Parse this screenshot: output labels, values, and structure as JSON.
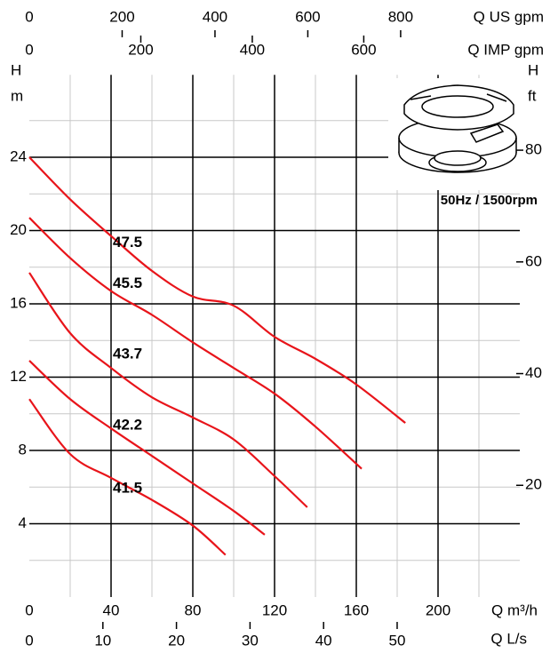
{
  "chart_data": {
    "type": "line",
    "x_title": "Q m³/h",
    "y_title": "H",
    "y_unit": "m",
    "y2_title": "H",
    "y2_unit": "ft",
    "annotation": "50Hz / 1500rpm",
    "xlim": [
      0,
      240
    ],
    "xticks": [
      0,
      40,
      80,
      120,
      160,
      200
    ],
    "xminor": [
      20,
      60,
      100,
      140,
      180,
      220
    ],
    "ylim": [
      0,
      28.5
    ],
    "yticks": [
      4,
      8,
      12,
      16,
      20,
      24
    ],
    "yminor": [
      2,
      6,
      10,
      14,
      18,
      22,
      26
    ],
    "y2lim": [
      0,
      93.5
    ],
    "y2ticks": [
      20,
      40,
      60,
      80
    ],
    "top_axes": [
      {
        "label": "Q US gpm",
        "xlim": [
          0,
          1056.7
        ],
        "xticks": [
          0,
          200,
          400,
          600,
          800
        ]
      },
      {
        "label": "Q IMP gpm",
        "xlim": [
          0,
          879.9
        ],
        "xticks": [
          0,
          200,
          400,
          600
        ]
      }
    ],
    "bottom_axes": [
      {
        "label": "Q L/s",
        "xlim": [
          0,
          66.67
        ],
        "xticks": [
          0,
          10,
          20,
          30,
          40,
          50
        ]
      }
    ],
    "grid": true,
    "series": [
      {
        "name": "47.5",
        "color": "#e8141a",
        "x": [
          0,
          20,
          40,
          60,
          80,
          100,
          120,
          140,
          160,
          184
        ],
        "values": [
          24,
          21.7,
          19.7,
          17.8,
          16.4,
          15.9,
          14.2,
          13.0,
          11.6,
          9.5
        ]
      },
      {
        "name": "45.5",
        "color": "#e8141a",
        "x": [
          0,
          20,
          40,
          60,
          80,
          100,
          120,
          140,
          162.6
        ],
        "values": [
          20.7,
          18.5,
          16.7,
          15.4,
          13.9,
          12.5,
          11.1,
          9.3,
          7.0
        ]
      },
      {
        "name": "43.7",
        "color": "#e8141a",
        "x": [
          0,
          20,
          40,
          60,
          80,
          100,
          120,
          136
        ],
        "values": [
          17.7,
          14.4,
          12.5,
          10.9,
          9.8,
          8.6,
          6.6,
          4.9
        ]
      },
      {
        "name": "42.2",
        "color": "#e8141a",
        "x": [
          0,
          20,
          40,
          60,
          80,
          100,
          115.2
        ],
        "values": [
          12.9,
          10.8,
          9.2,
          7.7,
          6.2,
          4.7,
          3.4
        ]
      },
      {
        "name": "41.5",
        "color": "#e8141a",
        "x": [
          0,
          20,
          40,
          60,
          80,
          96
        ],
        "values": [
          10.8,
          7.8,
          6.5,
          5.3,
          3.9,
          2.3
        ]
      }
    ]
  }
}
